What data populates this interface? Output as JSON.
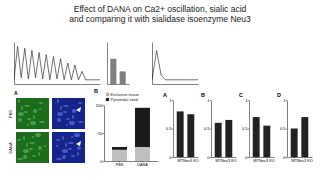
{
  "title": "Effect of DANA on Ca2+ oscillation, sialic acid and comparing it with sialidase isoenzyme Neu3",
  "images": {
    "label": "A",
    "rows": [
      "PBS",
      "DANA"
    ]
  },
  "chart_data": [
    {
      "type": "line",
      "x": [
        0,
        1,
        2,
        3,
        4,
        5,
        6,
        7,
        8,
        9,
        10,
        11,
        12,
        13,
        14,
        15,
        16,
        17,
        18,
        19,
        20,
        21,
        22,
        23,
        24
      ],
      "values": [
        0.1,
        0.9,
        0.15,
        0.85,
        0.12,
        0.8,
        0.15,
        0.75,
        0.12,
        0.7,
        0.1,
        0.65,
        0.12,
        0.6,
        0.1,
        0.5,
        0.1,
        0.45,
        0.1,
        0.3,
        0.1,
        0.1,
        0.1,
        0.1,
        0.1
      ],
      "xlim": [
        0,
        24
      ],
      "ylim": [
        0,
        1
      ],
      "color": "#333333",
      "tick_labels": false
    },
    {
      "type": "bar",
      "categories": [
        null,
        null
      ],
      "values": [
        0.6,
        0.3
      ],
      "ylim": [
        0,
        1
      ],
      "color": "#808080",
      "tick_labels": false
    },
    {
      "type": "line",
      "x": [
        0,
        1,
        2,
        3,
        4,
        5,
        6,
        7,
        8,
        9,
        10
      ],
      "values": [
        0.1,
        0.8,
        0.2,
        0.1,
        0.1,
        0.1,
        0.1,
        0.1,
        0.1,
        0.1,
        0.1
      ],
      "xlim": [
        0,
        10
      ],
      "ylim": [
        0,
        1
      ],
      "color": "#333333",
      "tick_labels": false
    },
    {
      "type": "bar",
      "title": "B",
      "categories": [
        "PBS",
        "DANA"
      ],
      "stacked": true,
      "legend": "top-left",
      "series": [
        {
          "name": "Exclusive tissue",
          "color": "#bfbfbf",
          "values": [
            20,
            25
          ]
        },
        {
          "name": "Pyramidal sited",
          "color": "#1a1a1a",
          "values": [
            5,
            70
          ]
        }
      ],
      "ylim": [
        0,
        100
      ],
      "yticks": [
        0,
        50,
        100
      ]
    },
    {
      "type": "bar",
      "title": "A",
      "categories": [
        "WT",
        "Neu3 KO"
      ],
      "values": [
        0.8,
        0.75
      ],
      "ylim": [
        0,
        1
      ],
      "yticks": [
        0,
        0.5,
        1
      ],
      "color": "#222222"
    },
    {
      "type": "bar",
      "title": "B",
      "categories": [
        "WT",
        "Neu3 KO"
      ],
      "values": [
        0.6,
        0.65
      ],
      "ylim": [
        0,
        1
      ],
      "yticks": [
        0,
        0.5,
        1
      ],
      "color": "#222222"
    },
    {
      "type": "bar",
      "title": "C",
      "categories": [
        "WT",
        "Neu3 KO"
      ],
      "values": [
        0.7,
        0.55
      ],
      "ylim": [
        0,
        1
      ],
      "yticks": [
        0,
        0.5,
        1
      ],
      "color": "#222222"
    },
    {
      "type": "bar",
      "title": "D",
      "categories": [
        "WT",
        "Neu3 KO"
      ],
      "values": [
        0.5,
        0.7
      ],
      "ylim": [
        0,
        1
      ],
      "yticks": [
        0,
        0.5,
        1
      ],
      "color": "#222222"
    }
  ]
}
